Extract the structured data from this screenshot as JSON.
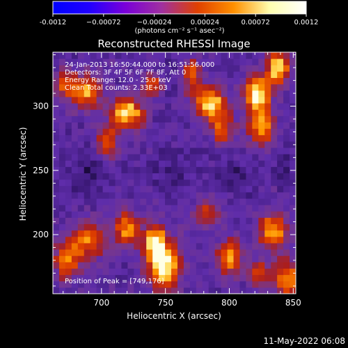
{
  "chart_data": {
    "type": "heatmap",
    "title": "Reconstructed RHESSI Image",
    "xlabel": "Heliocentric X (arcsec)",
    "ylabel": "Heliocentric Y (arcsec)",
    "xlim": [
      662,
      852
    ],
    "ylim": [
      154,
      342
    ],
    "x_ticks": [
      700,
      750,
      800,
      850
    ],
    "y_ticks": [
      200,
      250,
      300
    ],
    "x_tick_labels": [
      "700",
      "750",
      "800",
      "850"
    ],
    "y_tick_labels": [
      "200",
      "250",
      "300"
    ],
    "colorbar": {
      "range": [
        -0.0012,
        0.0012
      ],
      "ticks": [
        -0.0012,
        -0.00072,
        -0.00024,
        0.00024,
        0.00072,
        0.0012
      ],
      "tick_labels": [
        "-0.0012",
        "−0.00072",
        "−0.00024",
        "0.00024",
        "0.00072",
        "0.0012"
      ],
      "units": "(photons cm⁻² s⁻¹ asec⁻²)",
      "colors": [
        "#0000ff",
        "#2000ff",
        "#7a00d8",
        "#a030a0",
        "#e04000",
        "#ff9000",
        "#ffffb0",
        "#ffffff"
      ]
    },
    "annotation_lines": [
      "24-Jan-2013 16:50:44.000 to 16:51:56.000",
      "Detectors: 3F 4F 5F 6F 7F 8F, Att 0",
      "Energy Range: 12.0 - 25.0 keV",
      "Clean    Total counts: 2.33E+03"
    ],
    "peak_text": "Position of Peak = [749,176]",
    "peak_position": [
      749,
      176
    ],
    "grid": false,
    "pixel_grid": {
      "nx": 39,
      "ny": 38,
      "seed": 42
    },
    "hotspots": [
      {
        "x": 749,
        "y": 176,
        "peak": 1.0,
        "sx": 9,
        "sy": 12
      },
      {
        "x": 742,
        "y": 195,
        "peak": 0.8,
        "sx": 6,
        "sy": 9
      },
      {
        "x": 720,
        "y": 205,
        "peak": 0.7,
        "sx": 7,
        "sy": 9
      },
      {
        "x": 690,
        "y": 196,
        "peak": 0.6,
        "sx": 10,
        "sy": 10
      },
      {
        "x": 673,
        "y": 180,
        "peak": 0.65,
        "sx": 7,
        "sy": 9
      },
      {
        "x": 800,
        "y": 183,
        "peak": 0.7,
        "sx": 7,
        "sy": 9
      },
      {
        "x": 835,
        "y": 203,
        "peak": 0.75,
        "sx": 8,
        "sy": 10
      },
      {
        "x": 845,
        "y": 165,
        "peak": 0.7,
        "sx": 7,
        "sy": 10
      },
      {
        "x": 823,
        "y": 170,
        "peak": 0.5,
        "sx": 6,
        "sy": 7
      },
      {
        "x": 783,
        "y": 217,
        "peak": 0.5,
        "sx": 7,
        "sy": 8
      },
      {
        "x": 822,
        "y": 310,
        "peak": 0.95,
        "sx": 7,
        "sy": 10
      },
      {
        "x": 838,
        "y": 330,
        "peak": 0.9,
        "sx": 6,
        "sy": 9
      },
      {
        "x": 825,
        "y": 283,
        "peak": 0.7,
        "sx": 7,
        "sy": 10
      },
      {
        "x": 785,
        "y": 302,
        "peak": 0.85,
        "sx": 9,
        "sy": 9
      },
      {
        "x": 770,
        "y": 325,
        "peak": 0.6,
        "sx": 6,
        "sy": 8
      },
      {
        "x": 795,
        "y": 282,
        "peak": 0.55,
        "sx": 6,
        "sy": 8
      },
      {
        "x": 720,
        "y": 295,
        "peak": 0.85,
        "sx": 9,
        "sy": 9
      },
      {
        "x": 688,
        "y": 312,
        "peak": 0.75,
        "sx": 8,
        "sy": 9
      },
      {
        "x": 705,
        "y": 272,
        "peak": 0.55,
        "sx": 6,
        "sy": 8
      },
      {
        "x": 672,
        "y": 318,
        "peak": 0.5,
        "sx": 6,
        "sy": 7
      },
      {
        "x": 740,
        "y": 318,
        "peak": 0.45,
        "sx": 6,
        "sy": 7
      }
    ],
    "cold_spots": [
      {
        "x": 690,
        "y": 248,
        "depth": 0.5,
        "sx": 12,
        "sy": 12
      },
      {
        "x": 755,
        "y": 250,
        "depth": 0.4,
        "sx": 12,
        "sy": 12
      },
      {
        "x": 805,
        "y": 245,
        "depth": 0.45,
        "sx": 10,
        "sy": 10
      },
      {
        "x": 845,
        "y": 255,
        "depth": 0.35,
        "sx": 8,
        "sy": 10
      },
      {
        "x": 755,
        "y": 325,
        "depth": 0.4,
        "sx": 8,
        "sy": 8
      }
    ]
  },
  "footer": {
    "timestamp": "11-May-2022 06:08"
  }
}
